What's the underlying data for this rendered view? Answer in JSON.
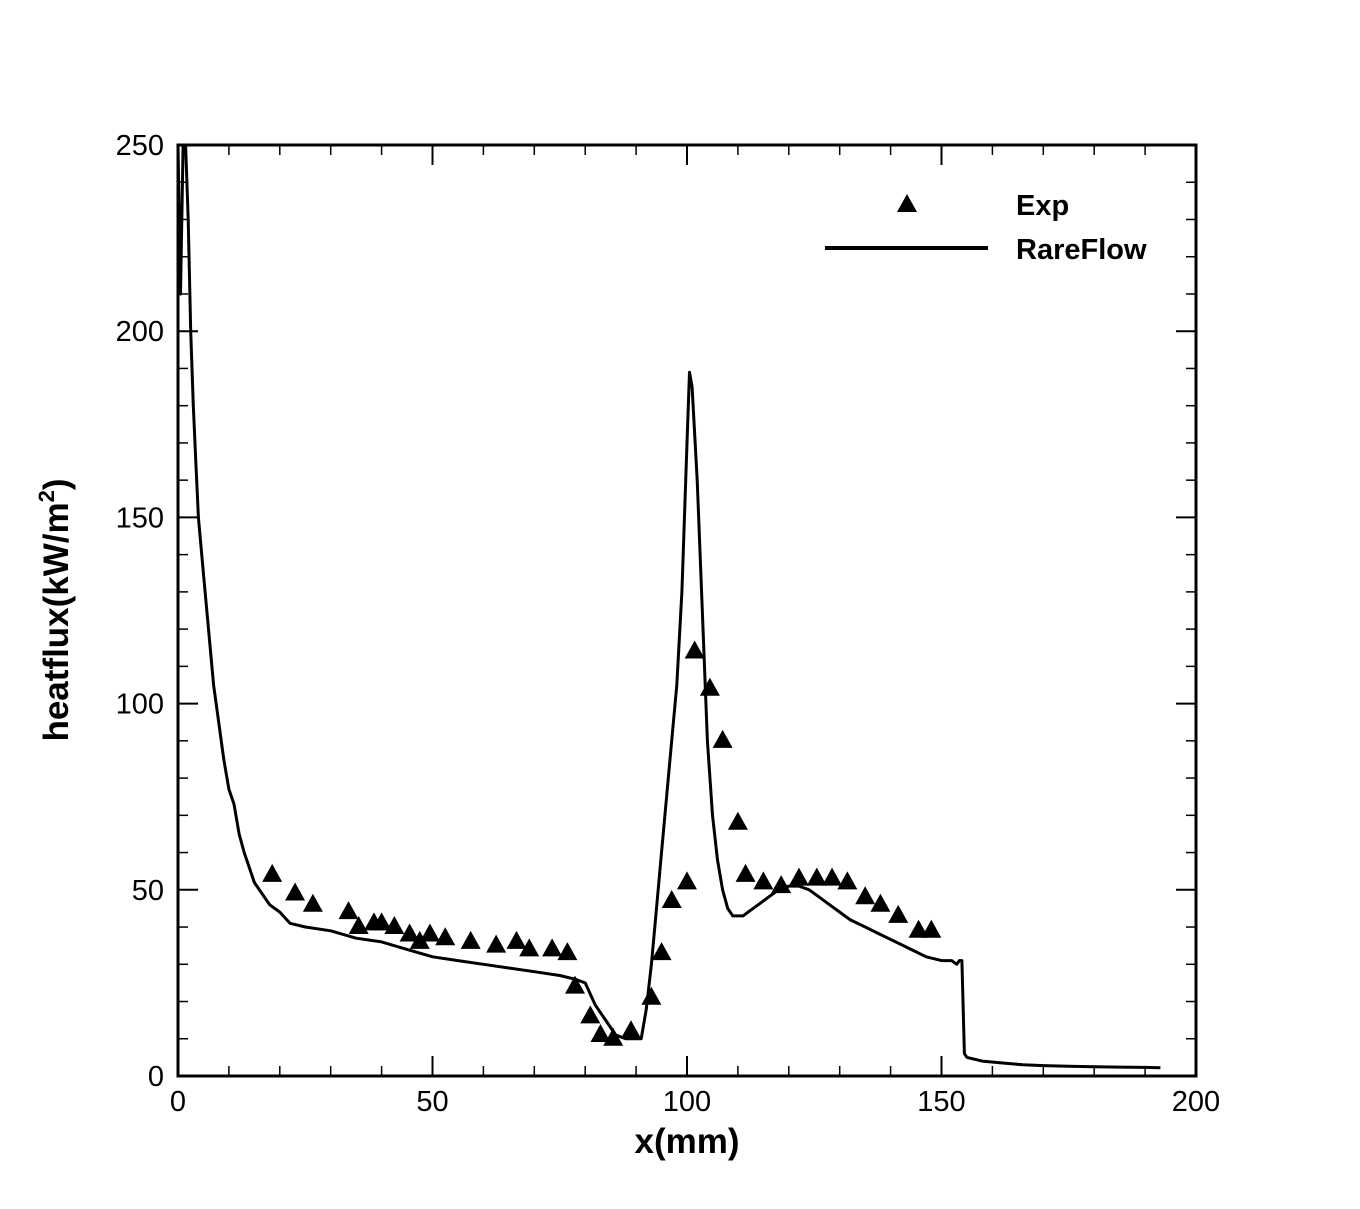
{
  "chart_data": {
    "type": "line",
    "xlabel": "x(mm)",
    "ylabel": "heatflux(kW/m",
    "ylabel_superscript": "2",
    "ylabel_suffix": ")",
    "xlim": [
      0,
      200
    ],
    "ylim": [
      0,
      250
    ],
    "x_ticks": [
      "0",
      "50",
      "100",
      "150",
      "200"
    ],
    "y_ticks": [
      "0",
      "50",
      "100",
      "150",
      "200",
      "250"
    ],
    "grid": false,
    "legend_position": "top-right",
    "series": [
      {
        "name": "Exp",
        "style": "markers",
        "marker": "triangle",
        "x": [
          18.5,
          23,
          26.5,
          33.5,
          35.5,
          38.5,
          40,
          42.5,
          45.5,
          47.5,
          49.5,
          52.5,
          57.5,
          62.5,
          66.5,
          69,
          73.5,
          76.5,
          78,
          81,
          83,
          85.5,
          89,
          93,
          95,
          97,
          100,
          101.5,
          104.5,
          107,
          110,
          111.5,
          115,
          118.5,
          122,
          125.5,
          128.5,
          131.5,
          135,
          138,
          141.5,
          145.5,
          148
        ],
        "y": [
          54,
          49,
          46,
          44,
          40,
          41,
          41,
          40,
          38,
          36,
          38,
          37,
          36,
          35,
          36,
          34,
          34,
          33,
          24,
          16,
          11,
          10,
          12,
          21,
          33,
          47,
          52,
          114,
          104,
          90,
          68,
          54,
          52,
          51,
          53,
          53,
          53,
          52,
          48,
          46,
          43,
          39,
          39
        ]
      },
      {
        "name": "RareFlow",
        "style": "line",
        "x": [
          0,
          0.5,
          1,
          1.5,
          2,
          2.5,
          3,
          3.5,
          4,
          5,
          6,
          7,
          8,
          9,
          10,
          11,
          12,
          13,
          14,
          15,
          16,
          18,
          20,
          22,
          25,
          30,
          35,
          40,
          45,
          50,
          55,
          60,
          65,
          70,
          75,
          78,
          80,
          82,
          84,
          86,
          88,
          90,
          91,
          92,
          93,
          94,
          95,
          96,
          97,
          98,
          99,
          100,
          100.5,
          101,
          102,
          103,
          104,
          105,
          106,
          107,
          108,
          109,
          110,
          111,
          112,
          114,
          116,
          118,
          120,
          122,
          124,
          126,
          128,
          130,
          132,
          135,
          138,
          141,
          144,
          147,
          150,
          152,
          153,
          153.5,
          154,
          154.5,
          155,
          158,
          162,
          166,
          170,
          175,
          180,
          185,
          190,
          193
        ],
        "y": [
          250,
          210,
          250,
          250,
          230,
          200,
          180,
          165,
          150,
          135,
          120,
          105,
          95,
          85,
          77,
          73,
          65,
          60,
          56,
          52,
          50,
          46,
          44,
          41,
          40,
          39,
          37,
          36,
          34,
          32,
          31,
          30,
          29,
          28,
          27,
          26,
          25,
          19,
          15,
          11,
          10,
          10,
          10,
          18,
          30,
          45,
          60,
          75,
          90,
          105,
          130,
          170,
          189,
          185,
          160,
          125,
          90,
          70,
          58,
          50,
          45,
          43,
          43,
          43,
          44,
          46,
          48,
          50,
          51,
          51,
          50,
          48,
          46,
          44,
          42,
          40,
          38,
          36,
          34,
          32,
          31,
          31,
          30,
          31,
          31,
          6,
          5,
          4,
          3.5,
          3,
          2.8,
          2.6,
          2.5,
          2.4,
          2.3,
          2.2
        ]
      }
    ]
  }
}
